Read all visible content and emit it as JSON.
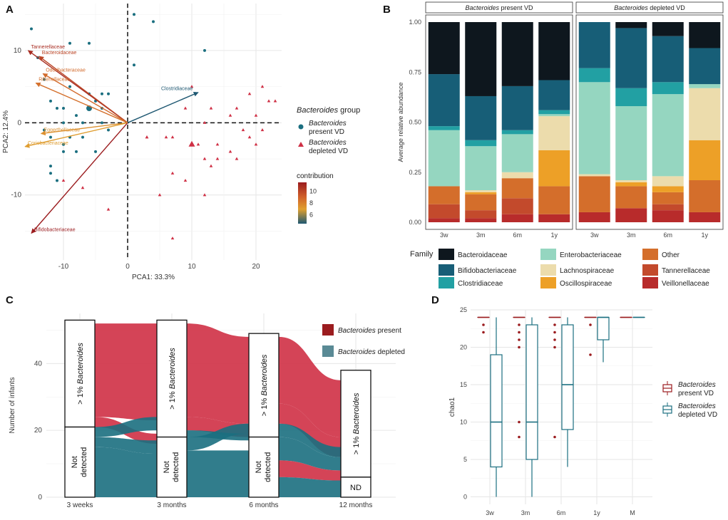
{
  "colors": {
    "present": "#1b6f80",
    "depleted": "#cf3045",
    "present_dark": "#9b1c1f",
    "depleted_box": "#4a8a99",
    "grid": "#e6e6e6",
    "text": "#333333"
  },
  "chart_data": [
    {
      "panel": "A",
      "type": "scatter",
      "xlabel": "PCA1: 33.3%",
      "ylabel": "PCA2: 12.4%",
      "xlim": [
        -16,
        24
      ],
      "ylim": [
        -19,
        16.5
      ],
      "xticks": [
        -10,
        0,
        10,
        20
      ],
      "yticks": [
        -10,
        0,
        10
      ],
      "series": [
        {
          "name": "present VD",
          "points": [
            [
              1,
              15
            ],
            [
              4,
              14
            ],
            [
              -15,
              13
            ],
            [
              -6,
              11
            ],
            [
              -14,
              9
            ],
            [
              -9,
              11
            ],
            [
              12,
              10
            ],
            [
              -4,
              4
            ],
            [
              -3,
              4
            ],
            [
              1,
              8
            ],
            [
              -13,
              6
            ],
            [
              -9,
              5
            ],
            [
              -6,
              4
            ],
            [
              -11,
              2
            ],
            [
              -10,
              2
            ],
            [
              -12,
              3
            ],
            [
              -4,
              2
            ],
            [
              -5,
              3
            ],
            [
              -8,
              1
            ],
            [
              -6,
              2
            ],
            [
              -10,
              0
            ],
            [
              -7,
              0
            ],
            [
              -4,
              0
            ],
            [
              -13,
              -1
            ],
            [
              -9,
              -2
            ],
            [
              -7,
              -2
            ],
            [
              -12,
              -2
            ],
            [
              -10,
              -4
            ],
            [
              -8,
              -4
            ],
            [
              -5,
              -4
            ],
            [
              -12,
              -6
            ],
            [
              -12,
              -7
            ],
            [
              -11,
              -8
            ],
            [
              -10,
              -3
            ],
            [
              -3,
              -1
            ]
          ],
          "centroid": [
            -6,
            2
          ]
        },
        {
          "name": "depleted VD",
          "points": [
            [
              10,
              5
            ],
            [
              21,
              5
            ],
            [
              19,
              4
            ],
            [
              22,
              3
            ],
            [
              17,
              2
            ],
            [
              23,
              3
            ],
            [
              13,
              2
            ],
            [
              16,
              1
            ],
            [
              9,
              2
            ],
            [
              20,
              1
            ],
            [
              21,
              -1
            ],
            [
              18,
              -1
            ],
            [
              12,
              0
            ],
            [
              3,
              -2
            ],
            [
              6,
              -2
            ],
            [
              7,
              -2
            ],
            [
              11,
              -3
            ],
            [
              14,
              -3
            ],
            [
              19,
              -2
            ],
            [
              16,
              -4
            ],
            [
              17,
              -5
            ],
            [
              12,
              -5
            ],
            [
              13,
              -6
            ],
            [
              7,
              -7
            ],
            [
              9,
              -8
            ],
            [
              12,
              -10
            ],
            [
              5,
              -10
            ],
            [
              -7,
              -9
            ],
            [
              -3,
              -12
            ],
            [
              7,
              -16
            ],
            [
              3,
              -2
            ],
            [
              20,
              -3
            ],
            [
              14,
              -5
            ],
            [
              -10,
              -8
            ]
          ],
          "centroid": [
            10,
            -3
          ]
        }
      ],
      "arrows": [
        {
          "label": "Tannerellaceae",
          "x": -15.5,
          "y": 10.0,
          "contribution": 11.0
        },
        {
          "label": "Bacteroidaceae",
          "x": -13.8,
          "y": 9.2,
          "contribution": 10.3
        },
        {
          "label": "Odoribacteraceae",
          "x": -13.2,
          "y": 6.8,
          "contribution": 9.2
        },
        {
          "label": "Rikenellaceae",
          "x": -14.3,
          "y": 5.5,
          "contribution": 9.0
        },
        {
          "label": "Clostridiaceae",
          "x": 11.0,
          "y": 4.2,
          "contribution": 4.5
        },
        {
          "label": "Eggerthellaceae",
          "x": -13.5,
          "y": -1.5,
          "contribution": 8.0
        },
        {
          "label": "Coriobacteriaceae",
          "x": -16.0,
          "y": -3.3,
          "contribution": 7.6
        },
        {
          "label": "Bifidobacteriaceae",
          "x": -15.0,
          "y": -15.3,
          "contribution": 11.5
        }
      ],
      "legend_title_prefix": "Bacteroides",
      "legend_title_suffix": "group",
      "legend_items": [
        "present VD",
        "depleted VD"
      ],
      "legend_italic": "Bacteroides",
      "contribution_title": "contribution",
      "contribution_ticks": [
        6,
        8,
        10
      ]
    },
    {
      "panel": "B",
      "type": "bar",
      "facets": [
        "Bacteroides present VD",
        "Bacteroides depleted VD"
      ],
      "categories": [
        "3w",
        "3m",
        "6m",
        "1y"
      ],
      "ylabel": "Average relative abundance",
      "ylim": [
        0,
        1
      ],
      "yticks": [
        "0.00",
        "0.25",
        "0.50",
        "0.75",
        "1.00"
      ],
      "legend_title": "Family",
      "stack_order_bottom_to_top": [
        "Veillonellaceae",
        "Tannerellaceae",
        "Other",
        "Oscillospiraceae",
        "Lachnospiraceae",
        "Enterobacteriaceae",
        "Clostridiaceae",
        "Bifidobacteriaceae",
        "Bacteroidaceae"
      ],
      "family_colors": {
        "Bacteroidaceae": "#0e171e",
        "Bifidobacteriaceae": "#175e77",
        "Clostridiaceae": "#22a0a3",
        "Enterobacteriaceae": "#95d6c0",
        "Lachnospiraceae": "#ecdcac",
        "Oscillospiraceae": "#eda027",
        "Other": "#d46e2b",
        "Tannerellaceae": "#c34a2c",
        "Veillonellaceae": "#b82b2b"
      },
      "legend_order": [
        "Bacteroidaceae",
        "Bifidobacteriaceae",
        "Clostridiaceae",
        "Enterobacteriaceae",
        "Lachnospiraceae",
        "Oscillospiraceae",
        "Other",
        "Tannerellaceae",
        "Veillonellaceae"
      ],
      "series": [
        {
          "facet": 0,
          "values": [
            [
              0.02,
              0.07,
              0.09,
              0.0,
              0.0,
              0.28,
              0.02,
              0.26,
              0.26
            ],
            [
              0.02,
              0.04,
              0.08,
              0.01,
              0.01,
              0.22,
              0.03,
              0.22,
              0.37
            ],
            [
              0.04,
              0.08,
              0.1,
              0.0,
              0.03,
              0.19,
              0.02,
              0.22,
              0.32
            ],
            [
              0.04,
              0.0,
              0.14,
              0.18,
              0.17,
              0.01,
              0.02,
              0.15,
              0.29
            ]
          ]
        },
        {
          "facet": 1,
          "values": [
            [
              0.05,
              0.0,
              0.18,
              0.0,
              0.01,
              0.46,
              0.07,
              0.23,
              0.0
            ],
            [
              0.07,
              0.0,
              0.11,
              0.02,
              0.01,
              0.37,
              0.09,
              0.3,
              0.03
            ],
            [
              0.06,
              0.03,
              0.06,
              0.03,
              0.05,
              0.41,
              0.06,
              0.23,
              0.07
            ],
            [
              0.05,
              0.0,
              0.16,
              0.2,
              0.26,
              0.02,
              0.0,
              0.18,
              0.13
            ]
          ]
        }
      ]
    },
    {
      "panel": "C",
      "type": "alluvial",
      "ylabel": "Number of infants",
      "categories": [
        "3 weeks",
        "3 months",
        "6 months",
        "12 months"
      ],
      "yticks": [
        0,
        20,
        40
      ],
      "ylim": [
        0,
        55
      ],
      "stratum_counts": [
        {
          "top": 33,
          "bottom": 21,
          "top_label": "> 1% Bacteroides",
          "bottom_label": "Not detected"
        },
        {
          "top": 35,
          "bottom": 18,
          "top_label": "> 1% Bacteroides",
          "bottom_label": "Not detected"
        },
        {
          "top": 31,
          "bottom": 18,
          "top_label": "> 1% Bacteroides",
          "bottom_label": "Not detected"
        },
        {
          "top": 32,
          "bottom": 6,
          "top_label": "> 1% Bacteroides",
          "bottom_label": "ND"
        }
      ],
      "legend_items": [
        "Bacteroides present",
        "Bacteroides depleted"
      ],
      "legend_italic": "Bacteroides"
    },
    {
      "panel": "D",
      "type": "box",
      "ylabel": "chao1",
      "categories": [
        "3w",
        "3m",
        "6m",
        "1y",
        "M"
      ],
      "ylim": [
        -1,
        25
      ],
      "yticks": [
        0,
        5,
        10,
        15,
        20,
        25
      ],
      "series": [
        {
          "name": "present VD",
          "boxes": [
            {
              "q1": 24,
              "median": 24,
              "q3": 24,
              "min": 24,
              "max": 24,
              "outliers": [
                23,
                22
              ]
            },
            {
              "q1": 24,
              "median": 24,
              "q3": 24,
              "min": 24,
              "max": 24,
              "outliers": [
                23,
                22,
                21,
                20,
                10,
                8
              ]
            },
            {
              "q1": 24,
              "median": 24,
              "q3": 24,
              "min": 24,
              "max": 24,
              "outliers": [
                23,
                22,
                21,
                20,
                8
              ]
            },
            {
              "q1": 24,
              "median": 24,
              "q3": 24,
              "min": 24,
              "max": 24,
              "outliers": [
                23,
                19
              ]
            },
            {
              "q1": 24,
              "median": 24,
              "q3": 24,
              "min": 24,
              "max": 24,
              "outliers": []
            }
          ]
        },
        {
          "name": "depleted VD",
          "boxes": [
            {
              "q1": 4,
              "median": 10,
              "q3": 19,
              "min": 0,
              "max": 24,
              "outliers": []
            },
            {
              "q1": 5,
              "median": 10,
              "q3": 23,
              "min": 0,
              "max": 24,
              "outliers": []
            },
            {
              "q1": 9,
              "median": 15,
              "q3": 23,
              "min": 4,
              "max": 24,
              "outliers": []
            },
            {
              "q1": 21,
              "median": 24,
              "q3": 24,
              "min": 18,
              "max": 24,
              "outliers": []
            },
            {
              "q1": 24,
              "median": 24,
              "q3": 24,
              "min": 24,
              "max": 24,
              "outliers": []
            }
          ]
        }
      ],
      "legend_items": [
        "present VD",
        "depleted VD"
      ],
      "legend_italic": "Bacteroides"
    }
  ],
  "panel_labels": [
    "A",
    "B",
    "C",
    "D"
  ]
}
